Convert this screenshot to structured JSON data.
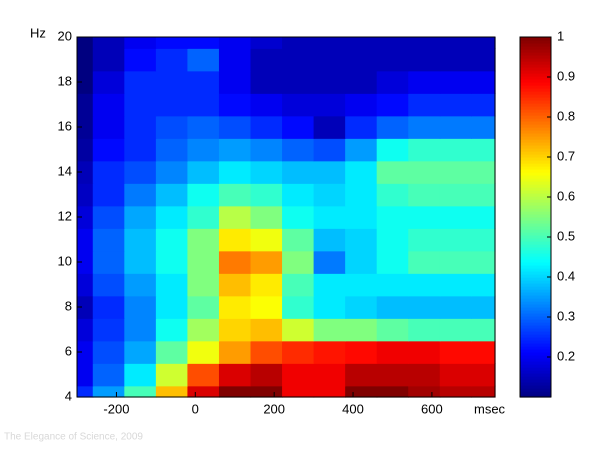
{
  "chart_data": {
    "type": "contour",
    "x_label": "msec",
    "y_label": "Hz",
    "colormap": "jet",
    "watermark": "The Elegance of Science, 2009",
    "x": [
      -300,
      -220,
      -140,
      -60,
      20,
      100,
      180,
      260,
      340,
      420,
      500,
      580,
      660,
      740
    ],
    "y": [
      4,
      5,
      6,
      7,
      8,
      9,
      10,
      11,
      12,
      13,
      14,
      15,
      16,
      17,
      18,
      19,
      20
    ],
    "z": [
      [
        0.25,
        0.35,
        0.5,
        0.72,
        0.92,
        1.0,
        1.0,
        0.9,
        0.9,
        1.0,
        1.0,
        0.97,
        0.95,
        0.95
      ],
      [
        0.2,
        0.3,
        0.42,
        0.62,
        0.82,
        0.92,
        0.95,
        0.9,
        0.9,
        0.95,
        0.95,
        0.95,
        0.92,
        0.92
      ],
      [
        0.2,
        0.28,
        0.36,
        0.52,
        0.65,
        0.75,
        0.82,
        0.85,
        0.87,
        0.88,
        0.9,
        0.9,
        0.88,
        0.88
      ],
      [
        0.18,
        0.26,
        0.33,
        0.45,
        0.58,
        0.7,
        0.72,
        0.62,
        0.55,
        0.55,
        0.52,
        0.5,
        0.5,
        0.5
      ],
      [
        0.15,
        0.25,
        0.33,
        0.42,
        0.52,
        0.68,
        0.66,
        0.48,
        0.42,
        0.4,
        0.38,
        0.38,
        0.38,
        0.38
      ],
      [
        0.18,
        0.28,
        0.35,
        0.42,
        0.55,
        0.72,
        0.68,
        0.5,
        0.42,
        0.42,
        0.42,
        0.42,
        0.42,
        0.42
      ],
      [
        0.2,
        0.3,
        0.38,
        0.45,
        0.55,
        0.78,
        0.75,
        0.55,
        0.32,
        0.4,
        0.45,
        0.5,
        0.5,
        0.5
      ],
      [
        0.2,
        0.3,
        0.38,
        0.45,
        0.55,
        0.68,
        0.65,
        0.52,
        0.38,
        0.4,
        0.45,
        0.48,
        0.48,
        0.48
      ],
      [
        0.18,
        0.28,
        0.36,
        0.42,
        0.48,
        0.6,
        0.55,
        0.45,
        0.42,
        0.42,
        0.45,
        0.45,
        0.45,
        0.45
      ],
      [
        0.16,
        0.25,
        0.32,
        0.38,
        0.45,
        0.5,
        0.48,
        0.42,
        0.4,
        0.42,
        0.48,
        0.5,
        0.5,
        0.5
      ],
      [
        0.15,
        0.25,
        0.28,
        0.33,
        0.38,
        0.42,
        0.4,
        0.38,
        0.38,
        0.42,
        0.52,
        0.52,
        0.52,
        0.52
      ],
      [
        0.13,
        0.22,
        0.25,
        0.3,
        0.33,
        0.35,
        0.33,
        0.3,
        0.28,
        0.35,
        0.45,
        0.48,
        0.48,
        0.48
      ],
      [
        0.12,
        0.2,
        0.25,
        0.28,
        0.3,
        0.28,
        0.25,
        0.22,
        0.15,
        0.25,
        0.3,
        0.32,
        0.32,
        0.32
      ],
      [
        0.12,
        0.2,
        0.25,
        0.25,
        0.25,
        0.22,
        0.2,
        0.18,
        0.18,
        0.2,
        0.22,
        0.25,
        0.25,
        0.25
      ],
      [
        0.1,
        0.18,
        0.25,
        0.25,
        0.25,
        0.2,
        0.15,
        0.15,
        0.15,
        0.15,
        0.18,
        0.2,
        0.2,
        0.2
      ],
      [
        0.1,
        0.15,
        0.22,
        0.25,
        0.3,
        0.2,
        0.15,
        0.15,
        0.15,
        0.15,
        0.15,
        0.15,
        0.15,
        0.15
      ],
      [
        0.1,
        0.15,
        0.2,
        0.22,
        0.22,
        0.2,
        0.17,
        0.15,
        0.15,
        0.15,
        0.15,
        0.15,
        0.15,
        0.15
      ]
    ],
    "xlim": [
      -300,
      760
    ],
    "ylim": [
      4,
      20
    ],
    "xticks": [
      -200,
      0,
      200,
      400,
      600
    ],
    "yticks": [
      4,
      6,
      8,
      10,
      12,
      14,
      16,
      18,
      20
    ],
    "zlim": [
      0.1,
      1
    ],
    "zticks": [
      0.2,
      0.3,
      0.4,
      0.5,
      0.6,
      0.7,
      0.8,
      0.9,
      1
    ]
  }
}
